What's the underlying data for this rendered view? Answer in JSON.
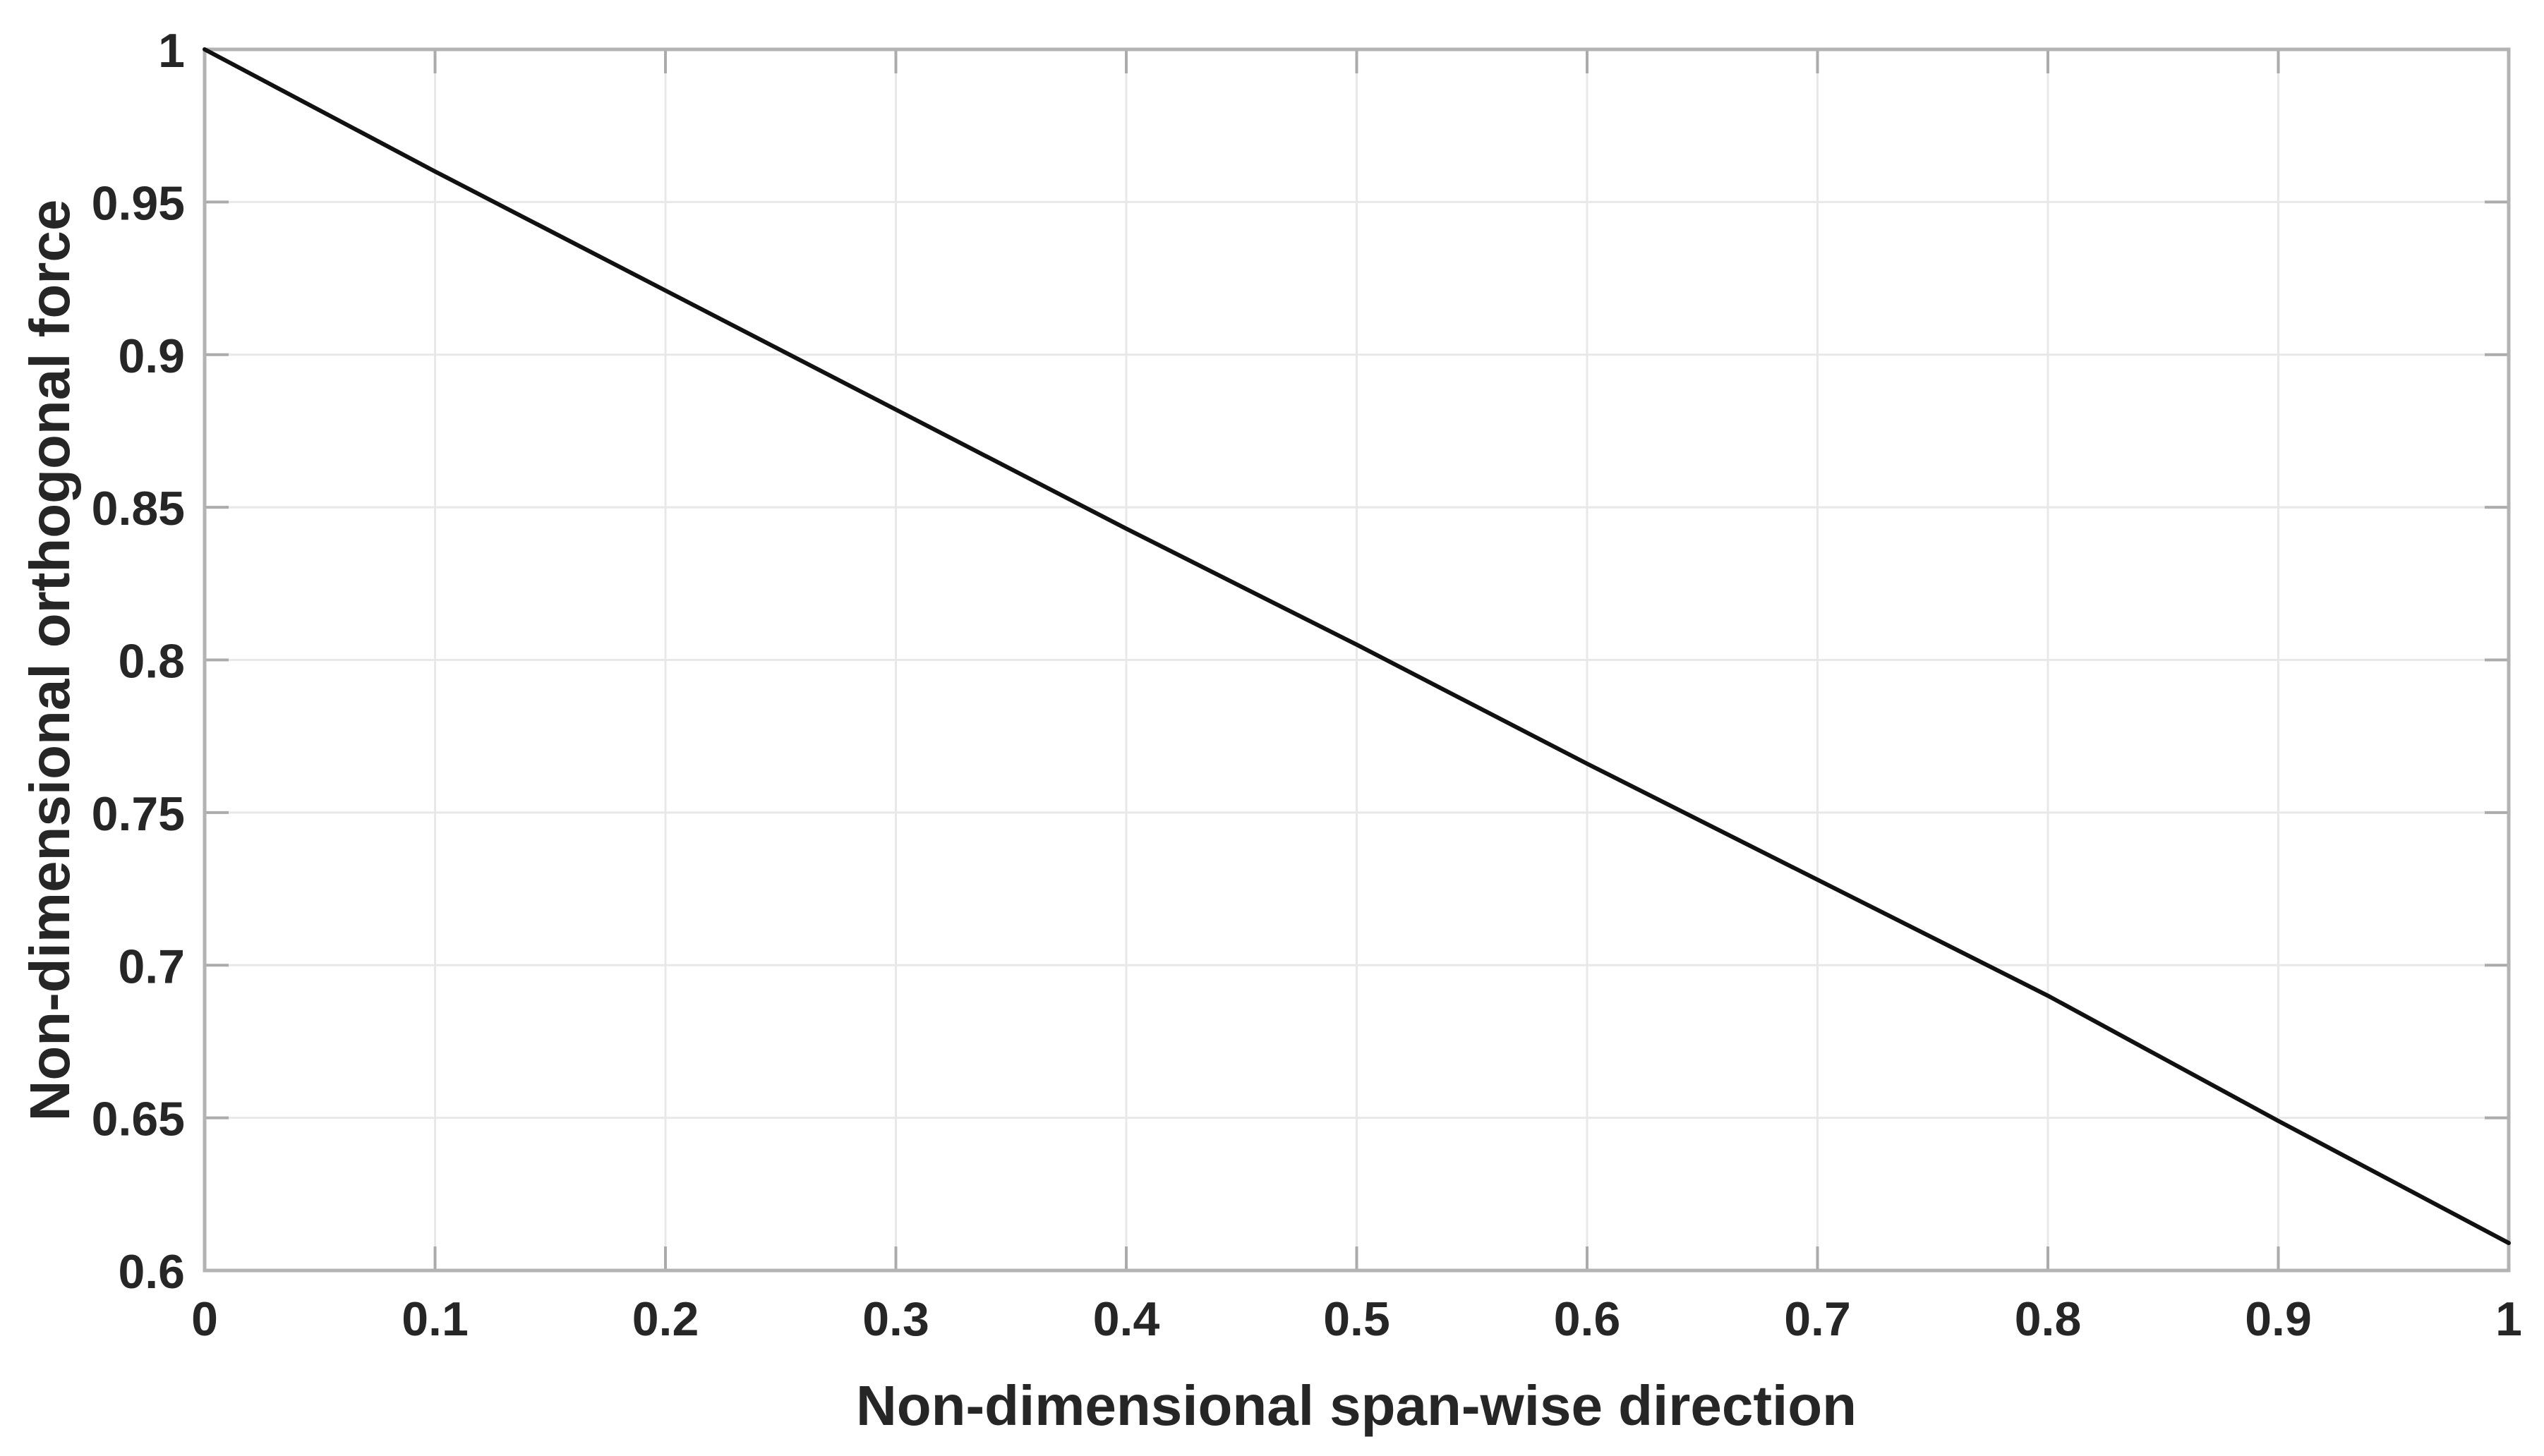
{
  "figure": {
    "background": "#ffffff"
  },
  "colors": {
    "line": "#111111",
    "grid": "#e8e8e8",
    "axis_box": "#b3b3b3",
    "tick": "#ababab",
    "text": "#262626"
  },
  "chart_data": {
    "type": "line",
    "title": "",
    "xlabel": "Non-dimensional span-wise direction",
    "ylabel": "Non-dimensional orthogonal force",
    "xlim": [
      0,
      1
    ],
    "ylim": [
      0.6,
      1.0
    ],
    "grid": true,
    "legend_position": "none",
    "x_ticks": [
      0,
      0.1,
      0.2,
      0.3,
      0.4,
      0.5,
      0.6,
      0.7,
      0.8,
      0.9,
      1
    ],
    "x_tick_labels": [
      "0",
      "0.1",
      "0.2",
      "0.3",
      "0.4",
      "0.5",
      "0.6",
      "0.7",
      "0.8",
      "0.9",
      "1"
    ],
    "y_ticks": [
      0.6,
      0.65,
      0.7,
      0.75,
      0.8,
      0.85,
      0.9,
      0.95,
      1
    ],
    "y_tick_labels": [
      "0.6",
      "0.65",
      "0.7",
      "0.75",
      "0.8",
      "0.85",
      "0.9",
      "0.95",
      "1"
    ],
    "series": [
      {
        "name": "non-dimensional orthogonal force",
        "color": "#111111",
        "x": [
          0,
          0.1,
          0.2,
          0.3,
          0.4,
          0.5,
          0.6,
          0.7,
          0.8,
          0.9,
          1
        ],
        "y": [
          1.0,
          0.96,
          0.921,
          0.882,
          0.843,
          0.805,
          0.766,
          0.728,
          0.69,
          0.649,
          0.609
        ]
      }
    ]
  }
}
